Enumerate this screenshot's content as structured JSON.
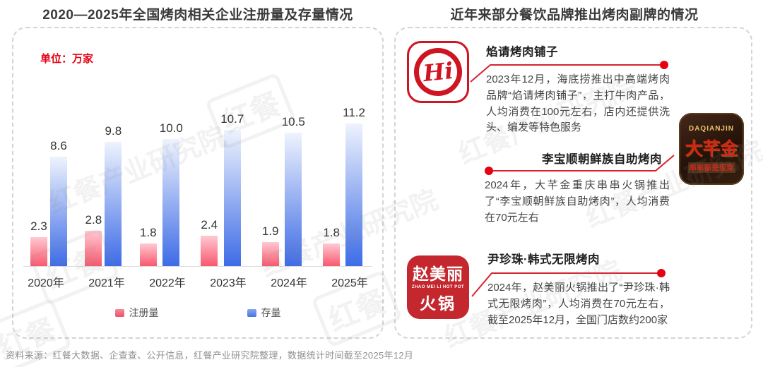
{
  "left_panel": {
    "title": "2020—2025年全国烤肉相关企业注册量及存量情况",
    "unit_label": "单位：万家",
    "legend": [
      {
        "label": "注册量",
        "color": "#f2647a"
      },
      {
        "label": "存量",
        "color": "#5c86e8"
      }
    ]
  },
  "chart_data": {
    "type": "bar",
    "title": "2020—2025年全国烤肉相关企业注册量及存量情况",
    "unit": "万家",
    "categories": [
      "2020年",
      "2021年",
      "2022年",
      "2023年",
      "2024年",
      "2025年"
    ],
    "series": [
      {
        "name": "注册量",
        "values": [
          2.3,
          2.8,
          1.8,
          2.4,
          1.9,
          1.8
        ],
        "color_top": "#ffc9d2",
        "color_bottom": "#f9586e"
      },
      {
        "name": "存量",
        "values": [
          8.6,
          9.8,
          10.0,
          10.7,
          10.5,
          11.2
        ],
        "color_top": "#eef3fd",
        "color_bottom": "#3e6ce6"
      }
    ],
    "ylim": [
      0,
      12
    ],
    "grid": false,
    "value_labels": true,
    "legend_position": "bottom"
  },
  "right_panel": {
    "title": "近年来部分餐饮品牌推出烤肉副牌的情况",
    "brands": [
      {
        "name": "焰请烤肉铺子",
        "logo_text": "Hi",
        "description": "2023年12月，海底捞推出中高端烤肉品牌“焰请烤肉铺子”，主打牛肉产品，人均消费在100元左右，店内还提供洗头、编发等特色服务"
      },
      {
        "name": "李宝顺朝鲜族自助烤肉",
        "logo_top": "DAQIANJIN",
        "logo_text": "大芊金",
        "logo_bottom": "串串都是现穿",
        "description": "2024年，大芊金重庆串串火锅推出了“李宝顺朝鲜族自助烤肉”，人均消费在70元左右"
      },
      {
        "name": "尹珍珠·韩式无限烤肉",
        "logo_line1": "赵美丽",
        "logo_sub": "ZHAO MEI LI HOT POT",
        "logo_line2": "火锅",
        "description": "2024年，赵美丽火锅推出了“尹珍珠·韩式无限烤肉”，人均消费在70元左右，截至2025年12月，全国门店数约200家"
      }
    ]
  },
  "footer": {
    "source_text": "资料来源：红餐大数据、企查查、公开信息，红餐产业研究院整理，数据统计时间截至2025年12月"
  },
  "watermark": {
    "text": "红餐产业研究院",
    "box_text": "红餐"
  },
  "colors": {
    "accent_red": "#e60012",
    "connector_red": "#d5232e",
    "bar_red_top": "#ffc9d2",
    "bar_red_bottom": "#f9586e",
    "bar_blue_top": "#eef3fd",
    "bar_blue_bottom": "#3e6ce6",
    "axis_line": "#dcdcdc"
  }
}
